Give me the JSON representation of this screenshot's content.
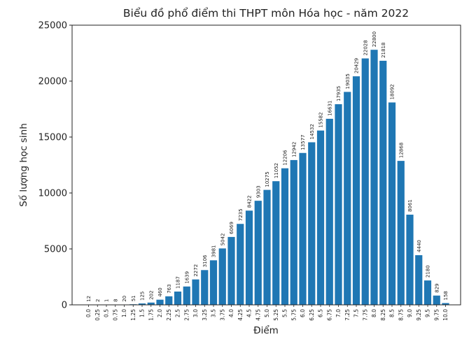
{
  "chart_data": {
    "type": "bar",
    "title": "Biểu đồ phổ điểm thi THPT môn Hóa học - năm 2022",
    "xlabel": "Điểm",
    "ylabel": "Số lượng học sinh",
    "ylim": [
      0,
      25000
    ],
    "yticks": [
      "0",
      "5000",
      "10000",
      "15000",
      "20000",
      "25000"
    ],
    "categories": [
      "0.0",
      "0.25",
      "0.5",
      "0.75",
      "1.0",
      "1.25",
      "1.5",
      "1.75",
      "2.0",
      "2.25",
      "2.5",
      "2.75",
      "3.0",
      "3.25",
      "3.5",
      "3.75",
      "4.0",
      "4.25",
      "4.5",
      "4.75",
      "5.0",
      "5.25",
      "5.5",
      "5.75",
      "6.0",
      "6.25",
      "6.5",
      "6.75",
      "7.0",
      "7.25",
      "7.5",
      "7.75",
      "8.0",
      "8.25",
      "8.5",
      "8.75",
      "9.0",
      "9.25",
      "9.5",
      "9.75",
      "10.0"
    ],
    "values": [
      12,
      2,
      1,
      8,
      20,
      51,
      125,
      202,
      460,
      763,
      1187,
      1639,
      2272,
      3106,
      3981,
      5042,
      6069,
      7235,
      8422,
      9303,
      10275,
      11052,
      12206,
      12942,
      13577,
      14532,
      15582,
      16631,
      17935,
      19035,
      20429,
      22028,
      22800,
      21818,
      18092,
      12868,
      8061,
      4440,
      2180,
      829,
      158
    ],
    "bar_color": "#1f77b4",
    "grid": false,
    "legend": "none"
  }
}
